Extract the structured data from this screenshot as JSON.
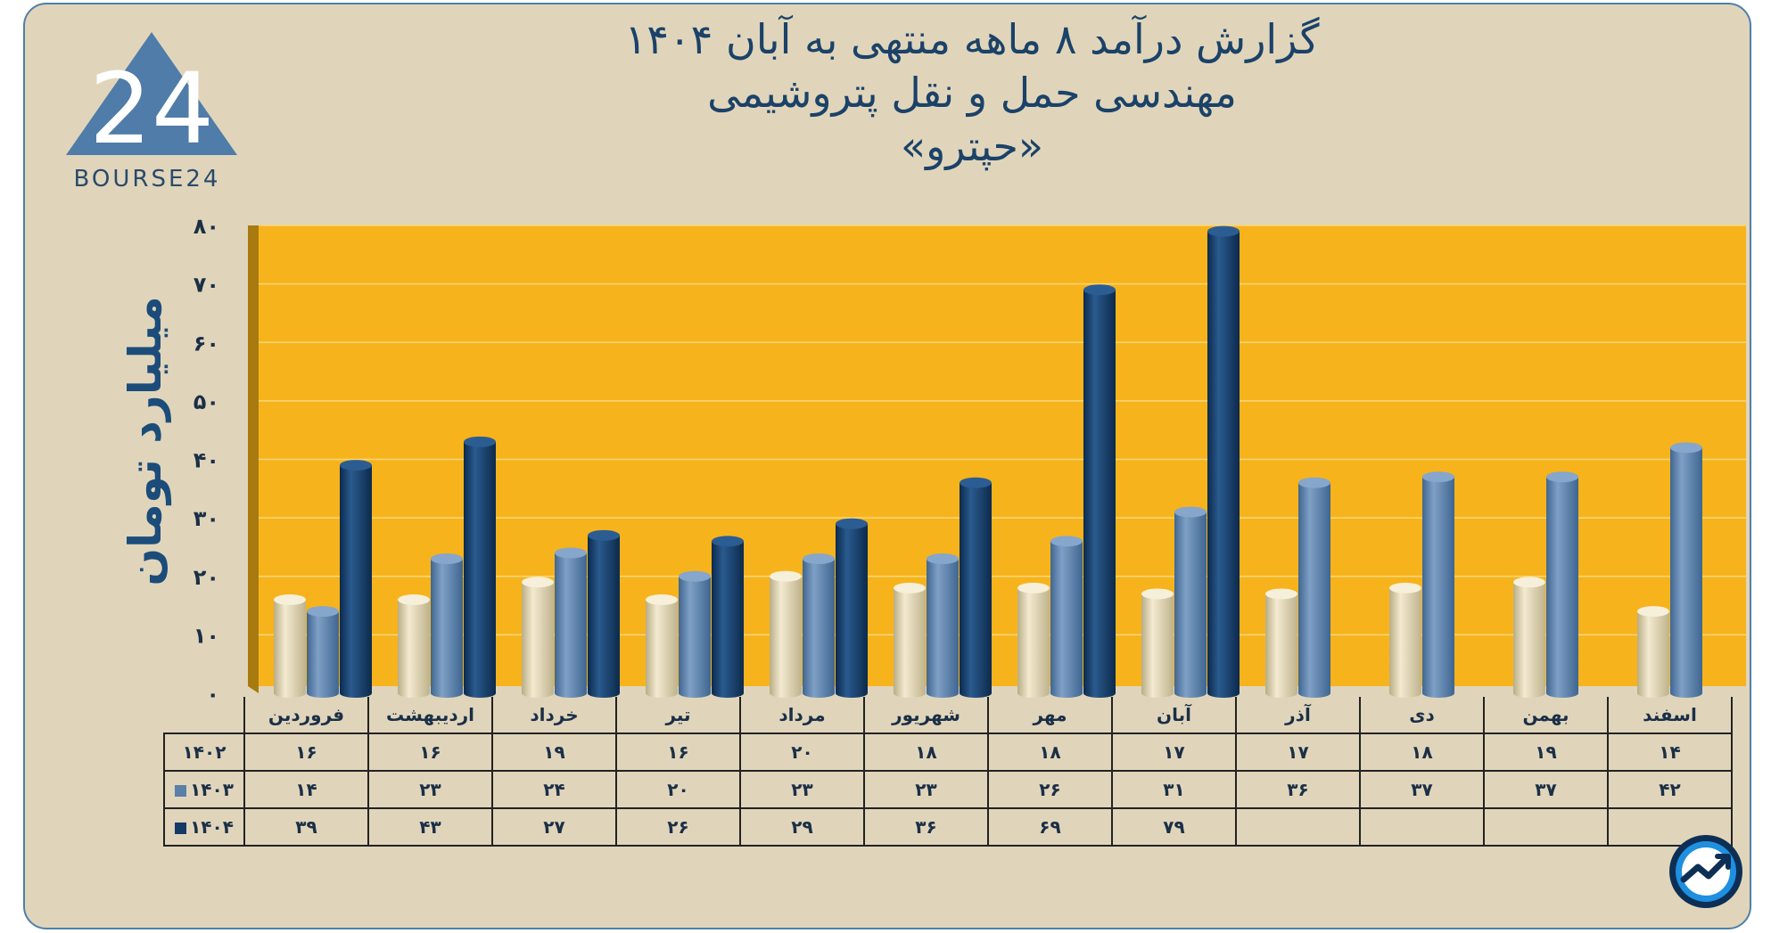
{
  "title": {
    "line1": "گزارش  درآمد ۸ ماهه منتهی به آبان ۱۴۰۴",
    "line2": "مهندسی حمل و نقل پتروشیمی",
    "line3": "«حپترو»"
  },
  "logo": {
    "text": "BOURSE24",
    "mark": "24",
    "icon": "bourse24-triangle-logo"
  },
  "badge": {
    "icon": "trend-arrow-badge-icon"
  },
  "colors": {
    "plot_bg": "#f7b31c",
    "series_1402": "#e4d9b4",
    "series_1403": "#5a7fa8",
    "series_1404": "#143a66",
    "axis_text": "#1b2f46"
  },
  "chart_data": {
    "type": "bar",
    "ylabel": "میلیارد تومان",
    "ylim": [
      0,
      80
    ],
    "yticks": [
      0,
      10,
      20,
      30,
      40,
      50,
      60,
      70,
      80
    ],
    "ytick_labels": [
      "۰",
      "۱۰",
      "۲۰",
      "۳۰",
      "۴۰",
      "۵۰",
      "۶۰",
      "۷۰",
      "۸۰"
    ],
    "grid": true,
    "categories": [
      "فروردین",
      "اردیبهشت",
      "خرداد",
      "تیر",
      "مرداد",
      "شهریور",
      "مهر",
      "آبان",
      "آذر",
      "دی",
      "بهمن",
      "اسفند"
    ],
    "series": [
      {
        "name": "۱۴۰۲",
        "values": [
          16,
          16,
          19,
          16,
          20,
          18,
          18,
          17,
          17,
          18,
          19,
          14
        ],
        "labels": [
          "۱۶",
          "۱۶",
          "۱۹",
          "۱۶",
          "۲۰",
          "۱۸",
          "۱۸",
          "۱۷",
          "۱۷",
          "۱۸",
          "۱۹",
          "۱۴"
        ]
      },
      {
        "name": "۱۴۰۳",
        "values": [
          14,
          23,
          24,
          20,
          23,
          23,
          26,
          31,
          36,
          37,
          37,
          42
        ],
        "labels": [
          "۱۴",
          "۲۳",
          "۲۴",
          "۲۰",
          "۲۳",
          "۲۳",
          "۲۶",
          "۳۱",
          "۳۶",
          "۳۷",
          "۳۷",
          "۴۲"
        ]
      },
      {
        "name": "۱۴۰۴",
        "values": [
          39,
          43,
          27,
          26,
          29,
          36,
          69,
          79,
          null,
          null,
          null,
          null
        ],
        "labels": [
          "۳۹",
          "۴۳",
          "۲۷",
          "۲۶",
          "۲۹",
          "۳۶",
          "۶۹",
          "۷۹",
          "",
          "",
          "",
          ""
        ]
      }
    ]
  }
}
